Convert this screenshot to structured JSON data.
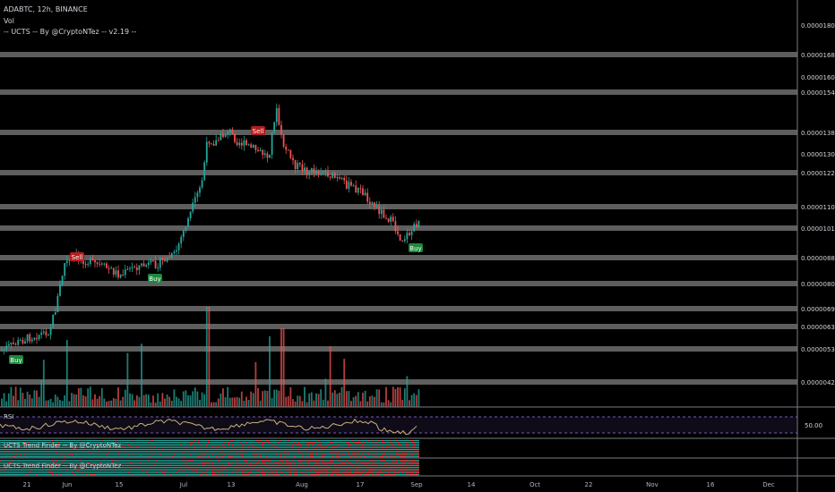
{
  "header": {
    "symbol_line": "ADABTC, 12h, BINANCE",
    "vol_label": "Vol",
    "indicator_line": "-- UCTS -- By @CryptoNTez -- v2.19 --"
  },
  "price_axis": {
    "ticks": [
      "0.00001800",
      "0.00001682",
      "0.00001600",
      "0.00001545",
      "0.00001389",
      "0.00001300",
      "0.00001229",
      "0.00001102",
      "0.00001015",
      "0.00000885",
      "0.00000804",
      "0.00000690",
      "0.00000630",
      "0.00000531",
      "0.00000420"
    ]
  },
  "rsi": {
    "label": "RSI",
    "level": "50.00"
  },
  "trend_panes": [
    {
      "label": "UCTS Trend Finder -- By @CryptoNTez"
    },
    {
      "label": "UCTS Trend Finder -- By @CryptoNTez"
    }
  ],
  "time_axis": {
    "labels": [
      "21",
      "Jun",
      "15",
      "Jul",
      "13",
      "Aug",
      "17",
      "Sep",
      "14",
      "Oct",
      "22",
      "Nov",
      "16",
      "Dec"
    ]
  },
  "signals": [
    {
      "text": "Buy",
      "type": "buy"
    },
    {
      "text": "Sell",
      "type": "sell"
    },
    {
      "text": "Buy",
      "type": "buy"
    },
    {
      "text": "Sell",
      "type": "sell"
    },
    {
      "text": "Buy",
      "type": "buy"
    }
  ],
  "colors": {
    "up": "#26a69a",
    "down": "#ef5350",
    "buy_bg": "#1b8a3c",
    "sell_bg": "#b71c1c",
    "level_band": "#6e6e6e",
    "rsi_band": "#7e57c2"
  }
}
